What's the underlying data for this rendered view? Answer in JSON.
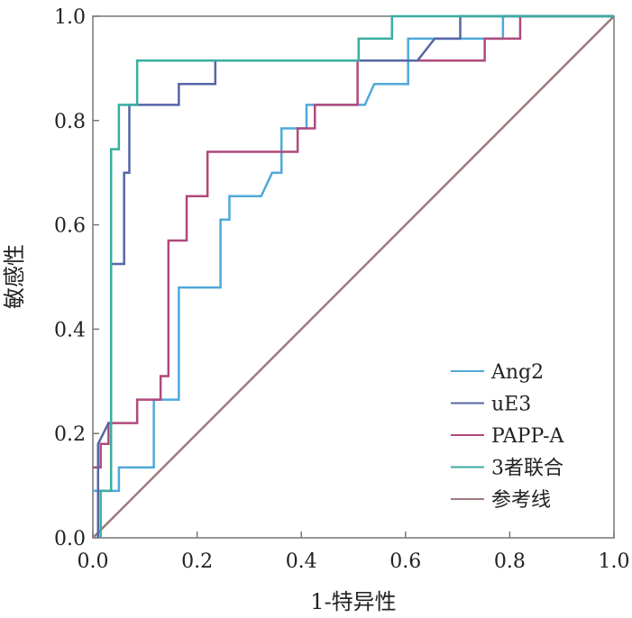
{
  "chart_data": {
    "type": "line",
    "title": "",
    "xlabel": "1-特异性",
    "ylabel": "敏感性",
    "xlim": [
      0,
      1
    ],
    "ylim": [
      0,
      1
    ],
    "xticks": [
      "0.0",
      "0.2",
      "0.4",
      "0.6",
      "0.8",
      "1.0"
    ],
    "yticks": [
      "0.0",
      "0.2",
      "0.4",
      "0.6",
      "0.8",
      "1.0"
    ],
    "legend_position": "bottom-right",
    "series": [
      {
        "name": "Ang2",
        "color": "#4fa9da",
        "points": [
          [
            0,
            0.09
          ],
          [
            0.05,
            0.09
          ],
          [
            0.05,
            0.135
          ],
          [
            0.117,
            0.135
          ],
          [
            0.117,
            0.265
          ],
          [
            0.165,
            0.265
          ],
          [
            0.165,
            0.48
          ],
          [
            0.245,
            0.48
          ],
          [
            0.245,
            0.61
          ],
          [
            0.262,
            0.61
          ],
          [
            0.262,
            0.655
          ],
          [
            0.323,
            0.655
          ],
          [
            0.344,
            0.7
          ],
          [
            0.362,
            0.7
          ],
          [
            0.362,
            0.785
          ],
          [
            0.41,
            0.785
          ],
          [
            0.41,
            0.83
          ],
          [
            0.522,
            0.83
          ],
          [
            0.54,
            0.87
          ],
          [
            0.605,
            0.87
          ],
          [
            0.605,
            0.957
          ],
          [
            0.787,
            0.957
          ],
          [
            0.787,
            1
          ],
          [
            1,
            1
          ]
        ]
      },
      {
        "name": "uE3",
        "color": "#5566a6",
        "points": [
          [
            0.01,
            0
          ],
          [
            0.01,
            0.18
          ],
          [
            0.03,
            0.22
          ],
          [
            0.035,
            0.22
          ],
          [
            0.035,
            0.525
          ],
          [
            0.06,
            0.525
          ],
          [
            0.06,
            0.7
          ],
          [
            0.07,
            0.7
          ],
          [
            0.07,
            0.83
          ],
          [
            0.165,
            0.83
          ],
          [
            0.165,
            0.87
          ],
          [
            0.235,
            0.87
          ],
          [
            0.235,
            0.915
          ],
          [
            0.623,
            0.915
          ],
          [
            0.656,
            0.957
          ],
          [
            0.705,
            0.957
          ],
          [
            0.705,
            1
          ],
          [
            1,
            1
          ]
        ]
      },
      {
        "name": "PAPP-A",
        "color": "#b0497c",
        "points": [
          [
            0,
            0.135
          ],
          [
            0.015,
            0.135
          ],
          [
            0.015,
            0.18
          ],
          [
            0.03,
            0.18
          ],
          [
            0.03,
            0.22
          ],
          [
            0.085,
            0.22
          ],
          [
            0.085,
            0.265
          ],
          [
            0.13,
            0.265
          ],
          [
            0.13,
            0.31
          ],
          [
            0.145,
            0.31
          ],
          [
            0.145,
            0.57
          ],
          [
            0.18,
            0.57
          ],
          [
            0.18,
            0.655
          ],
          [
            0.22,
            0.655
          ],
          [
            0.22,
            0.74
          ],
          [
            0.393,
            0.74
          ],
          [
            0.393,
            0.785
          ],
          [
            0.426,
            0.785
          ],
          [
            0.426,
            0.83
          ],
          [
            0.508,
            0.83
          ],
          [
            0.508,
            0.915
          ],
          [
            0.752,
            0.915
          ],
          [
            0.752,
            0.957
          ],
          [
            0.82,
            0.957
          ],
          [
            0.82,
            1
          ],
          [
            1,
            1
          ]
        ]
      },
      {
        "name": "3者联合",
        "color": "#3aada0",
        "points": [
          [
            0.015,
            0
          ],
          [
            0.015,
            0.09
          ],
          [
            0.035,
            0.09
          ],
          [
            0.035,
            0.745
          ],
          [
            0.05,
            0.745
          ],
          [
            0.05,
            0.83
          ],
          [
            0.085,
            0.83
          ],
          [
            0.085,
            0.915
          ],
          [
            0.51,
            0.915
          ],
          [
            0.51,
            0.957
          ],
          [
            0.574,
            0.957
          ],
          [
            0.574,
            1
          ],
          [
            1,
            1
          ]
        ]
      },
      {
        "name": "参考线",
        "color": "#a07a7e",
        "points": [
          [
            0,
            0
          ],
          [
            1,
            1
          ]
        ]
      }
    ]
  }
}
